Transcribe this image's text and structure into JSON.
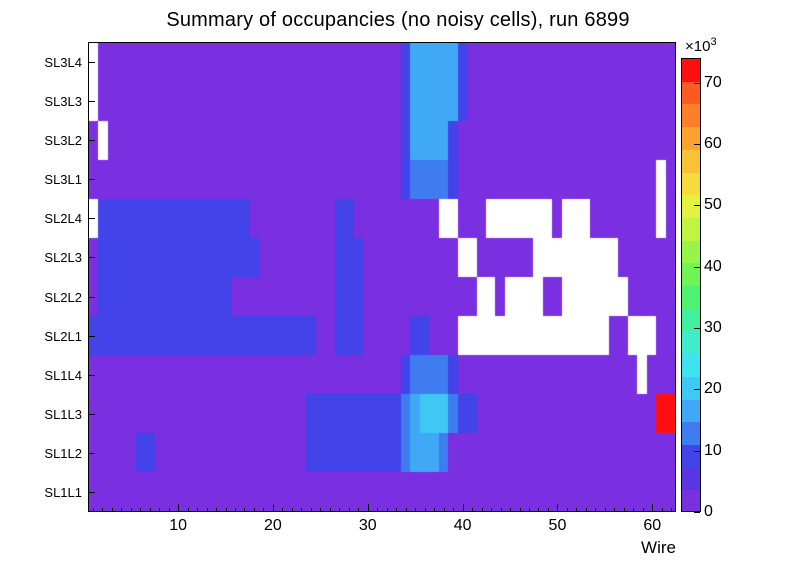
{
  "chart_data": {
    "type": "heatmap",
    "title": "Summary of occupancies (no noisy cells), run 6899",
    "xlabel": "Wire",
    "x_range": [
      1,
      62
    ],
    "x_ticks": [
      10,
      20,
      30,
      40,
      50,
      60
    ],
    "y_labels_bottom_to_top": [
      "SL1L1",
      "SL1L2",
      "SL1L3",
      "SL1L4",
      "SL2L1",
      "SL2L2",
      "SL2L3",
      "SL2L4",
      "SL3L1",
      "SL3L2",
      "SL3L3",
      "SL3L4"
    ],
    "rows_top_to_bottom": [
      "SL3L4",
      "SL3L3",
      "SL3L2",
      "SL3L1",
      "SL2L4",
      "SL2L3",
      "SL2L2",
      "SL2L1",
      "SL1L4",
      "SL1L3",
      "SL1L2",
      "SL1L1"
    ],
    "value_units": "occupancy counts in thousands (x10^3); null = empty white cell",
    "grid": [
      [
        null,
        3,
        3,
        3,
        3,
        3,
        3,
        3,
        3,
        3,
        3,
        3,
        3,
        3,
        3,
        3,
        3,
        3,
        3,
        3,
        3,
        3,
        3,
        3,
        3,
        3,
        3,
        3,
        3,
        3,
        3,
        3,
        3,
        8,
        15,
        15,
        15,
        15,
        15,
        8,
        3,
        3,
        3,
        3,
        3,
        3,
        3,
        3,
        3,
        3,
        3,
        3,
        3,
        3,
        3,
        3,
        3,
        3,
        3,
        3,
        3,
        3
      ],
      [
        null,
        3,
        3,
        3,
        3,
        3,
        3,
        3,
        3,
        3,
        3,
        3,
        3,
        3,
        3,
        3,
        3,
        3,
        3,
        3,
        3,
        3,
        3,
        3,
        3,
        3,
        3,
        3,
        3,
        3,
        3,
        3,
        3,
        8,
        15,
        15,
        15,
        15,
        15,
        8,
        3,
        3,
        3,
        3,
        3,
        3,
        3,
        3,
        3,
        3,
        3,
        3,
        3,
        3,
        3,
        3,
        3,
        3,
        3,
        3,
        3,
        3
      ],
      [
        3,
        null,
        3,
        3,
        3,
        3,
        3,
        3,
        3,
        3,
        3,
        3,
        3,
        3,
        3,
        3,
        3,
        3,
        3,
        3,
        3,
        3,
        3,
        3,
        3,
        3,
        3,
        3,
        3,
        3,
        3,
        3,
        3,
        8,
        15,
        15,
        15,
        15,
        8,
        3,
        3,
        3,
        3,
        3,
        3,
        3,
        3,
        3,
        3,
        3,
        3,
        3,
        3,
        3,
        3,
        3,
        3,
        3,
        3,
        3,
        3,
        3
      ],
      [
        3,
        3,
        3,
        3,
        3,
        3,
        3,
        3,
        3,
        3,
        3,
        3,
        3,
        3,
        3,
        3,
        3,
        3,
        3,
        3,
        3,
        3,
        3,
        3,
        3,
        3,
        3,
        3,
        3,
        3,
        3,
        3,
        3,
        8,
        12,
        12,
        12,
        12,
        8,
        3,
        3,
        3,
        3,
        3,
        3,
        3,
        3,
        3,
        3,
        3,
        3,
        3,
        3,
        3,
        3,
        3,
        3,
        3,
        3,
        3,
        null,
        3
      ],
      [
        null,
        8,
        8,
        8,
        8,
        8,
        8,
        8,
        8,
        8,
        8,
        8,
        8,
        8,
        8,
        8,
        8,
        3,
        3,
        3,
        3,
        3,
        3,
        3,
        3,
        3,
        8,
        8,
        3,
        3,
        3,
        3,
        3,
        3,
        3,
        3,
        3,
        null,
        null,
        3,
        3,
        3,
        null,
        null,
        null,
        null,
        null,
        null,
        null,
        3,
        null,
        null,
        null,
        3,
        3,
        3,
        3,
        3,
        3,
        3,
        null,
        3
      ],
      [
        3,
        8,
        8,
        8,
        8,
        8,
        8,
        8,
        8,
        8,
        8,
        8,
        8,
        8,
        8,
        8,
        8,
        8,
        3,
        3,
        3,
        3,
        3,
        3,
        3,
        3,
        8,
        8,
        8,
        3,
        3,
        3,
        3,
        3,
        3,
        3,
        3,
        3,
        3,
        null,
        null,
        3,
        3,
        3,
        3,
        3,
        3,
        null,
        null,
        null,
        null,
        null,
        null,
        null,
        null,
        null,
        3,
        3,
        3,
        3,
        3,
        3
      ],
      [
        3,
        8,
        8,
        8,
        8,
        8,
        8,
        8,
        8,
        8,
        8,
        8,
        8,
        8,
        8,
        3,
        3,
        3,
        3,
        3,
        3,
        3,
        3,
        3,
        3,
        3,
        8,
        8,
        8,
        3,
        3,
        3,
        3,
        3,
        3,
        3,
        3,
        3,
        3,
        3,
        3,
        null,
        null,
        3,
        null,
        null,
        null,
        null,
        3,
        3,
        null,
        null,
        null,
        null,
        null,
        null,
        null,
        3,
        3,
        3,
        3,
        3
      ],
      [
        8,
        8,
        8,
        8,
        8,
        8,
        8,
        8,
        8,
        8,
        8,
        8,
        8,
        8,
        8,
        8,
        8,
        8,
        8,
        8,
        8,
        8,
        8,
        8,
        3,
        3,
        8,
        8,
        8,
        3,
        3,
        3,
        3,
        3,
        8,
        8,
        3,
        3,
        3,
        null,
        null,
        null,
        null,
        null,
        null,
        null,
        null,
        null,
        null,
        null,
        null,
        null,
        null,
        null,
        null,
        3,
        3,
        null,
        null,
        null,
        3,
        3
      ],
      [
        3,
        3,
        3,
        3,
        3,
        3,
        3,
        3,
        3,
        3,
        3,
        3,
        3,
        3,
        3,
        3,
        3,
        3,
        3,
        3,
        3,
        3,
        3,
        3,
        3,
        3,
        3,
        3,
        3,
        3,
        3,
        3,
        3,
        8,
        12,
        12,
        12,
        12,
        8,
        3,
        3,
        3,
        3,
        3,
        3,
        3,
        3,
        3,
        3,
        3,
        3,
        3,
        3,
        3,
        3,
        3,
        3,
        3,
        null,
        3,
        3,
        3
      ],
      [
        3,
        3,
        3,
        3,
        3,
        3,
        3,
        3,
        3,
        3,
        3,
        3,
        3,
        3,
        3,
        3,
        3,
        3,
        3,
        3,
        3,
        3,
        3,
        8,
        8,
        8,
        8,
        8,
        8,
        8,
        8,
        8,
        8,
        12,
        15,
        22,
        22,
        22,
        12,
        8,
        8,
        3,
        3,
        3,
        3,
        3,
        3,
        3,
        3,
        3,
        3,
        3,
        3,
        3,
        3,
        3,
        3,
        3,
        3,
        3,
        73,
        73
      ],
      [
        3,
        3,
        3,
        3,
        3,
        8,
        8,
        3,
        3,
        3,
        3,
        3,
        3,
        3,
        3,
        3,
        3,
        3,
        3,
        3,
        3,
        3,
        3,
        8,
        8,
        8,
        8,
        8,
        8,
        8,
        8,
        8,
        8,
        12,
        18,
        18,
        18,
        12,
        3,
        3,
        3,
        3,
        3,
        3,
        3,
        3,
        3,
        3,
        3,
        3,
        3,
        3,
        3,
        3,
        3,
        3,
        3,
        3,
        3,
        3,
        3,
        3
      ],
      [
        3,
        3,
        3,
        3,
        3,
        3,
        3,
        3,
        3,
        3,
        3,
        3,
        3,
        3,
        3,
        3,
        3,
        3,
        3,
        3,
        3,
        3,
        3,
        3,
        3,
        3,
        3,
        3,
        3,
        3,
        3,
        3,
        3,
        3,
        3,
        3,
        3,
        3,
        3,
        3,
        3,
        3,
        3,
        3,
        3,
        3,
        3,
        3,
        3,
        3,
        3,
        3,
        3,
        3,
        3,
        3,
        3,
        3,
        3,
        3,
        3,
        3
      ]
    ],
    "palette": {
      "max": 74,
      "ticks": [
        0,
        10,
        20,
        30,
        40,
        50,
        60,
        70
      ],
      "exponent_base": "×10",
      "exponent": "3",
      "colors": [
        "#7a2fe0",
        "#5a35e6",
        "#4343ea",
        "#3e7cf0",
        "#3fa9f5",
        "#40c8f5",
        "#3fe3ef",
        "#3fedcc",
        "#40f0a0",
        "#4ef273",
        "#6ef455",
        "#96f546",
        "#bff53f",
        "#e3f23e",
        "#f6dc3a",
        "#f9c135",
        "#fba230",
        "#fd8029",
        "#fe5a21",
        "#ff0f0f"
      ],
      "legend_position": "right",
      "empty_color": "#ffffff"
    }
  }
}
